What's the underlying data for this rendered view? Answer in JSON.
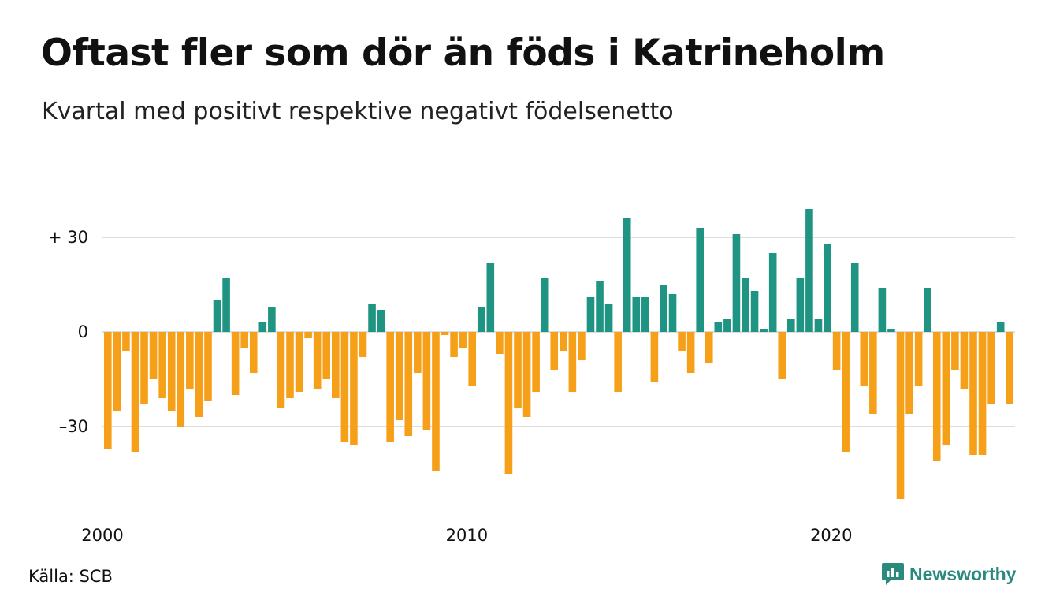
{
  "header": {
    "title": "Oftast fler som dör än föds i Katrineholm",
    "subtitle": "Kvartal med positivt respektive negativt födelsenetto"
  },
  "footer": {
    "source": "Källa: SCB",
    "brand": "Newsworthy",
    "brand_icon": "newsworthy-logo-icon"
  },
  "colors": {
    "positive": "#1f9483",
    "negative": "#f6a01a",
    "gridline": "#dedede",
    "brand": "#2a8a7b"
  },
  "chart_data": {
    "type": "bar",
    "x_start": "2000-Q1",
    "values": [
      -37,
      -25,
      -6,
      -38,
      -23,
      -15,
      -21,
      -25,
      -30,
      -18,
      -27,
      -22,
      10,
      17,
      -20,
      -5,
      -13,
      3,
      8,
      -24,
      -21,
      -19,
      -2,
      -18,
      -15,
      -21,
      -35,
      -36,
      -8,
      9,
      7,
      -35,
      -28,
      -33,
      -13,
      -31,
      -44,
      -1,
      -8,
      -5,
      -17,
      8,
      22,
      -7,
      -45,
      -24,
      -27,
      -19,
      17,
      -12,
      -6,
      -19,
      -9,
      11,
      16,
      9,
      -19,
      36,
      11,
      11,
      -16,
      15,
      12,
      -6,
      -13,
      33,
      -10,
      3,
      4,
      31,
      17,
      13,
      1,
      25,
      -15,
      4,
      17,
      39,
      4,
      28,
      -12,
      -38,
      22,
      -17,
      -26,
      14,
      1,
      -53,
      -26,
      -17,
      14,
      -41,
      -36,
      -12,
      -18,
      -39,
      -39,
      -23,
      3,
      -23
    ],
    "y_ticks": [
      {
        "value": 30,
        "label": "+ 30"
      },
      {
        "value": 0,
        "label": "0"
      },
      {
        "value": -30,
        "label": "–30"
      }
    ],
    "x_ticks": [
      {
        "year": 2000,
        "label": "2000"
      },
      {
        "year": 2010,
        "label": "2010"
      },
      {
        "year": 2020,
        "label": "2020"
      }
    ],
    "ylim": [
      -55,
      40
    ],
    "grid": true,
    "legend": "none"
  }
}
